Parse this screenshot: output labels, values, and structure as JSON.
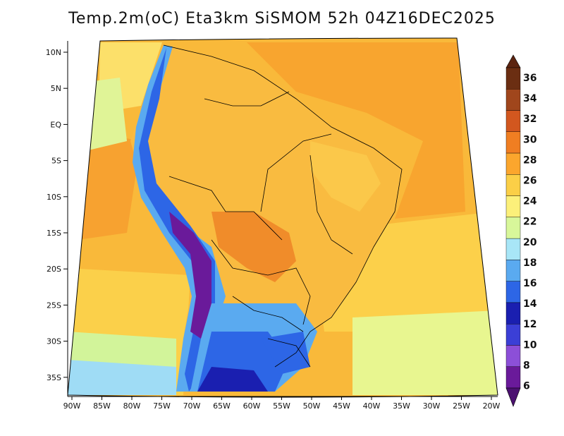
{
  "title": "Temp.2m(oC) Eta3km SiSMOM 52h 04Z16DEC2025",
  "lat_labels": [
    "10N",
    "5N",
    "EQ",
    "5S",
    "10S",
    "15S",
    "20S",
    "25S",
    "30S",
    "35S"
  ],
  "lon_labels": [
    "90W",
    "85W",
    "80W",
    "75W",
    "70W",
    "65W",
    "60W",
    "55W",
    "50W",
    "45W",
    "40W",
    "35W",
    "30W",
    "25W",
    "20W"
  ],
  "colorbar": {
    "labels": [
      "36",
      "34",
      "32",
      "30",
      "28",
      "26",
      "24",
      "22",
      "20",
      "18",
      "16",
      "14",
      "12",
      "10",
      "8",
      "6"
    ],
    "colors": [
      "#6b2e12",
      "#a0461c",
      "#d2571f",
      "#f07e22",
      "#fba62d",
      "#fbcf47",
      "#fcf07a",
      "#d8f79a",
      "#a8e6f7",
      "#5aaaf0",
      "#2d66e6",
      "#1a1fb0",
      "#3b3fd6",
      "#8c4fd8",
      "#6a1a9a"
    ],
    "upper_arrow_color": "#5c2410",
    "lower_arrow_color": "#4b1170"
  }
}
